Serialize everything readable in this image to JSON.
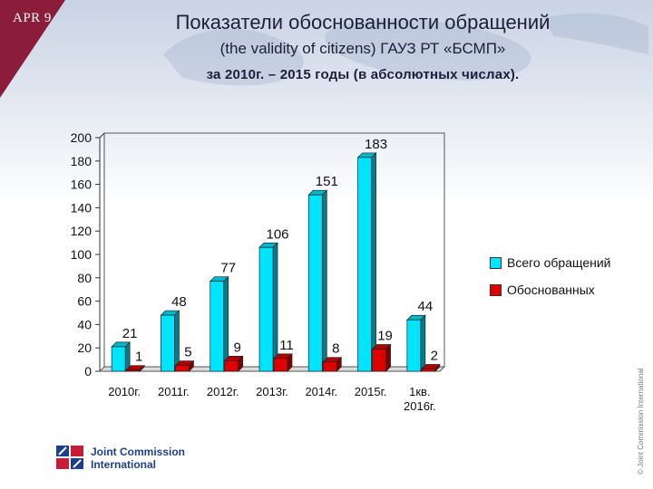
{
  "header": {
    "badge": "APR 9",
    "title_line1": "Показатели обоснованности обращений",
    "title_line2": "(the validity of citizens) ГАУЗ РТ «БСМП»",
    "title_line3": "за 2010г. – 2015 годы (в абсолютных числах)."
  },
  "chart_data": {
    "type": "bar",
    "categories": [
      "2010г.",
      "2011г.",
      "2012г.",
      "2013г.",
      "2014г.",
      "2015г.",
      "1кв. 2016г."
    ],
    "series": [
      {
        "name": "Всего обращений",
        "values": [
          21,
          48,
          77,
          106,
          151,
          183,
          44
        ],
        "color": "#00e5ff"
      },
      {
        "name": "Обоснованных",
        "values": [
          1,
          5,
          9,
          11,
          8,
          19,
          2
        ],
        "color": "#e00000"
      }
    ],
    "y_ticks": [
      0,
      20,
      40,
      60,
      80,
      100,
      120,
      140,
      160,
      180,
      200
    ],
    "ylim": [
      0,
      200
    ],
    "style": "3d-bar",
    "grid": false,
    "legend_position": "right"
  },
  "footer": {
    "logo_line1": "Joint Commission",
    "logo_line2": "International",
    "copyright": "© Joint Commission International"
  }
}
